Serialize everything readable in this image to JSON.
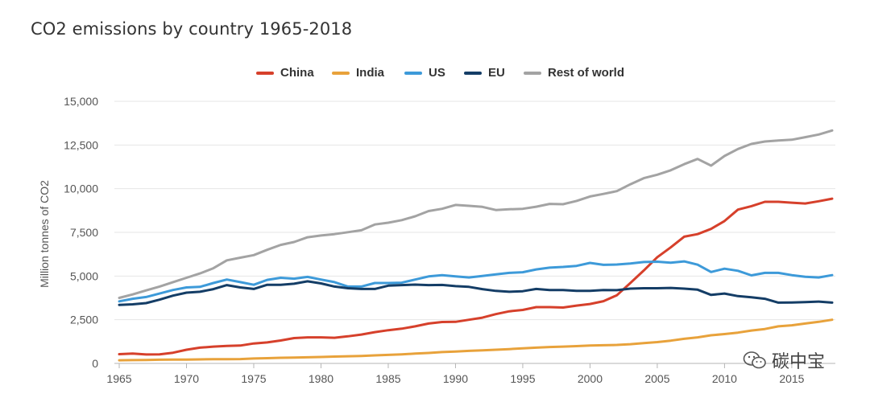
{
  "chart_data": {
    "type": "line",
    "title": "CO2 emissions by country 1965-2018",
    "xlabel": "",
    "ylabel": "Million tonnes of CO2",
    "xlim": [
      1965,
      2018
    ],
    "ylim": [
      0,
      15000
    ],
    "x_ticks": [
      "1965",
      "1970",
      "1975",
      "1980",
      "1985",
      "1990",
      "1995",
      "2000",
      "2005",
      "2010",
      "2015"
    ],
    "y_ticks": [
      "0",
      "2,500",
      "5,000",
      "7,500",
      "10,000",
      "12,500",
      "15,000"
    ],
    "legend_position": "top-center",
    "grid": "horizontal",
    "x": [
      1965,
      1966,
      1967,
      1968,
      1969,
      1970,
      1971,
      1972,
      1973,
      1974,
      1975,
      1976,
      1977,
      1978,
      1979,
      1980,
      1981,
      1982,
      1983,
      1984,
      1985,
      1986,
      1987,
      1988,
      1989,
      1990,
      1991,
      1992,
      1993,
      1994,
      1995,
      1996,
      1997,
      1998,
      1999,
      2000,
      2001,
      2002,
      2003,
      2004,
      2005,
      2006,
      2007,
      2008,
      2009,
      2010,
      2011,
      2012,
      2013,
      2014,
      2015,
      2016,
      2017,
      2018
    ],
    "series": [
      {
        "name": "China",
        "color": "#d6402b",
        "values": [
          530,
          560,
          510,
          520,
          610,
          780,
          900,
          960,
          1000,
          1020,
          1140,
          1200,
          1310,
          1450,
          1490,
          1490,
          1470,
          1550,
          1650,
          1790,
          1900,
          1990,
          2120,
          2280,
          2370,
          2380,
          2500,
          2620,
          2820,
          2980,
          3060,
          3220,
          3220,
          3200,
          3310,
          3400,
          3560,
          3900,
          4600,
          5320,
          6080,
          6640,
          7250,
          7400,
          7700,
          8150,
          8800,
          9000,
          9250,
          9250,
          9200,
          9150,
          9280,
          9430
        ]
      },
      {
        "name": "India",
        "color": "#e8a23b",
        "values": [
          180,
          190,
          200,
          210,
          220,
          220,
          230,
          240,
          240,
          250,
          280,
          300,
          320,
          330,
          350,
          370,
          390,
          410,
          430,
          460,
          490,
          520,
          560,
          600,
          650,
          680,
          720,
          750,
          780,
          820,
          860,
          900,
          940,
          960,
          990,
          1020,
          1040,
          1060,
          1100,
          1160,
          1220,
          1300,
          1410,
          1490,
          1610,
          1680,
          1760,
          1880,
          1970,
          2120,
          2180,
          2280,
          2380,
          2500
        ]
      },
      {
        "name": "US",
        "color": "#3d9ad9",
        "values": [
          3550,
          3700,
          3800,
          4000,
          4200,
          4350,
          4380,
          4600,
          4800,
          4650,
          4500,
          4780,
          4900,
          4850,
          4950,
          4800,
          4650,
          4400,
          4400,
          4600,
          4600,
          4620,
          4800,
          4980,
          5050,
          4980,
          4920,
          5000,
          5100,
          5180,
          5220,
          5380,
          5480,
          5520,
          5580,
          5750,
          5640,
          5660,
          5720,
          5800,
          5820,
          5760,
          5840,
          5650,
          5230,
          5420,
          5300,
          5040,
          5180,
          5180,
          5050,
          4960,
          4920,
          5050
        ]
      },
      {
        "name": "EU",
        "color": "#143d66",
        "values": [
          3350,
          3380,
          3450,
          3650,
          3880,
          4050,
          4100,
          4250,
          4480,
          4350,
          4260,
          4500,
          4500,
          4560,
          4700,
          4580,
          4400,
          4300,
          4260,
          4260,
          4450,
          4480,
          4510,
          4480,
          4490,
          4420,
          4380,
          4250,
          4150,
          4100,
          4130,
          4260,
          4200,
          4200,
          4150,
          4150,
          4200,
          4190,
          4280,
          4300,
          4300,
          4320,
          4280,
          4220,
          3920,
          4000,
          3850,
          3780,
          3700,
          3480,
          3490,
          3510,
          3540,
          3480
        ]
      },
      {
        "name": "Rest of world",
        "color": "#a3a3a3",
        "values": [
          3750,
          3950,
          4180,
          4400,
          4650,
          4900,
          5150,
          5450,
          5900,
          6050,
          6200,
          6500,
          6780,
          6950,
          7220,
          7320,
          7400,
          7510,
          7620,
          7950,
          8050,
          8200,
          8420,
          8720,
          8850,
          9070,
          9020,
          8960,
          8780,
          8820,
          8850,
          8970,
          9130,
          9110,
          9300,
          9550,
          9700,
          9860,
          10250,
          10600,
          10800,
          11050,
          11400,
          11700,
          11320,
          11870,
          12270,
          12560,
          12700,
          12760,
          12800,
          12950,
          13100,
          13330
        ]
      }
    ]
  },
  "watermark": {
    "text": "碳中宝"
  }
}
